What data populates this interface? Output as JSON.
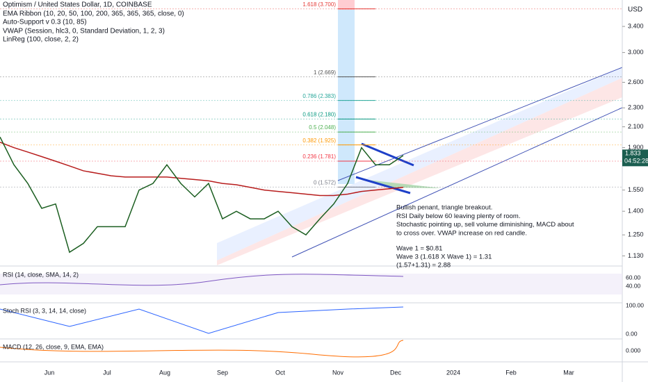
{
  "header": {
    "title": "Optimism / United States Dollar, 1D, COINBASE",
    "indicators": [
      "EMA Ribbon (10, 20, 50, 100, 200, 365, 365, 365, close, 0)",
      "Auto-Support v 0.3 (10, 85)",
      "VWAP (Session, hlc3, 0, Standard Deviation, 1, 2, 3)",
      "LinReg (100, close, 2, 2)"
    ]
  },
  "price_axis": {
    "unit": "USD",
    "log": true,
    "ylim": [
      1.08,
      3.86
    ],
    "yticks": [
      {
        "value": 3.4,
        "label": "3.400"
      },
      {
        "value": 3.0,
        "label": "3.000"
      },
      {
        "value": 2.6,
        "label": "2.600"
      },
      {
        "value": 2.3,
        "label": "2.300"
      },
      {
        "value": 2.1,
        "label": "2.100"
      },
      {
        "value": 1.9,
        "label": "1.900"
      },
      {
        "value": 1.55,
        "label": "1.550"
      },
      {
        "value": 1.4,
        "label": "1.400"
      },
      {
        "value": 1.25,
        "label": "1.250"
      },
      {
        "value": 1.13,
        "label": "1.130"
      }
    ],
    "current": 1.833,
    "countdown": "04:52:28"
  },
  "fib_levels": [
    {
      "label": "1.618 (3.700)",
      "value": 3.7,
      "color": "#e53935"
    },
    {
      "label": "1 (2.669)",
      "value": 2.669,
      "color": "#555555"
    },
    {
      "label": "0.786 (2.383)",
      "value": 2.383,
      "color": "#26a69a"
    },
    {
      "label": "0.618 (2.180)",
      "value": 2.18,
      "color": "#089981"
    },
    {
      "label": "0.5 (2.048)",
      "value": 2.048,
      "color": "#4caf50"
    },
    {
      "label": "0.382 (1.925)",
      "value": 1.925,
      "color": "#ff9800"
    },
    {
      "label": "0.236 (1.781)",
      "value": 1.781,
      "color": "#f23645"
    },
    {
      "label": "0 (1.572)",
      "value": 1.572,
      "color": "#787b86"
    }
  ],
  "price": {
    "color": "#1b5e20",
    "values": [
      2.0,
      1.75,
      1.6,
      1.42,
      1.45,
      1.15,
      1.2,
      1.3,
      1.3,
      1.3,
      1.55,
      1.6,
      1.75,
      1.6,
      1.5,
      1.6,
      1.35,
      1.4,
      1.35,
      1.35,
      1.4,
      1.3,
      1.25,
      1.35,
      1.45,
      1.6,
      1.9,
      1.75,
      1.75,
      1.83
    ]
  },
  "ema": {
    "color": "#b71c1c",
    "values": [
      1.95,
      1.9,
      1.86,
      1.82,
      1.78,
      1.74,
      1.7,
      1.68,
      1.66,
      1.65,
      1.65,
      1.65,
      1.65,
      1.64,
      1.63,
      1.62,
      1.6,
      1.59,
      1.57,
      1.55,
      1.54,
      1.53,
      1.52,
      1.51,
      1.51,
      1.52,
      1.54,
      1.55,
      1.56,
      1.57
    ]
  },
  "annotation": {
    "lines": [
      "Bullish penant, triangle breakout.",
      "RSI Daily below 60 leaving plenty of room.",
      "Stochastic pointing up, sell volume diminishing,  MACD about",
      "to cross over. VWAP increase on red candle."
    ],
    "waves": [
      "Wave 1 = $0.81",
      "Wave 3 (1.618 X Wave 1) = 1.31",
      "(1.57+1.31) = 2.88"
    ]
  },
  "x_labels": [
    "Jun",
    "Jul",
    "Aug",
    "Sep",
    "Oct",
    "Nov",
    "Dec",
    "2024",
    "Feb",
    "Mar"
  ],
  "panels": [
    {
      "title": "RSI (14, close, SMA, 14, 2)",
      "ticks": [
        "60.00",
        "40.00"
      ]
    },
    {
      "title": "Stoch RSI (3, 3, 14, 14, close)",
      "ticks": [
        "100.00",
        "0.00"
      ]
    },
    {
      "title": "MACD (12, 26, close, 9, EMA, EMA)",
      "ticks": [
        "0.000"
      ]
    }
  ]
}
